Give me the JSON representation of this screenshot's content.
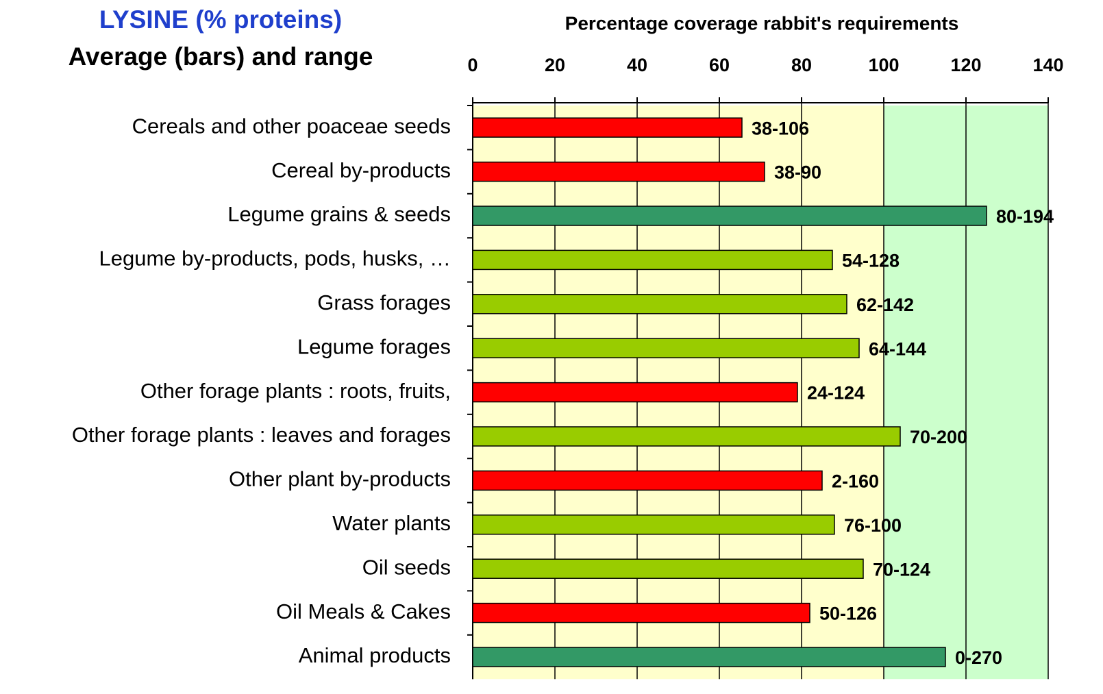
{
  "chart_data": {
    "type": "bar",
    "orientation": "horizontal",
    "title": "LYSINE (% proteins)",
    "subtitle": "Average (bars) and range",
    "x_label": "Percentage coverage rabbit's requirements",
    "categories": [
      "Cereals and other poaceae seeds",
      "Cereal by-products",
      "Legume grains & seeds",
      "Legume by-products, pods, husks, …",
      "Grass forages",
      "Legume forages",
      "Other forage plants : roots, fruits,",
      "Other forage plants : leaves and forages",
      "Other plant by-products",
      "Water plants",
      "Oil seeds",
      "Oil Meals & Cakes",
      "Animal products"
    ],
    "values": [
      65.5,
      71,
      125,
      87.5,
      91,
      94,
      79,
      104,
      85,
      88,
      95,
      82,
      115
    ],
    "range_labels": [
      "38-106",
      "38-90",
      "80-194",
      "54-128",
      "62-142",
      "64-144",
      "24-124",
      "70-200",
      "2-160",
      "76-100",
      "70-124",
      "50-126",
      "0-270"
    ],
    "colors": [
      "#ff0000",
      "#ff0000",
      "#339966",
      "#99cc00",
      "#99cc00",
      "#99cc00",
      "#ff0000",
      "#99cc00",
      "#ff0000",
      "#99cc00",
      "#99cc00",
      "#ff0000",
      "#339966"
    ],
    "xlim": [
      0,
      140
    ],
    "xticks": [
      0,
      20,
      40,
      60,
      80,
      100,
      120,
      140
    ],
    "bands": [
      {
        "from": 0,
        "to": 100,
        "color": "#ffffcc"
      },
      {
        "from": 100,
        "to": 140,
        "color": "#ccffcc"
      }
    ],
    "grid": true
  }
}
